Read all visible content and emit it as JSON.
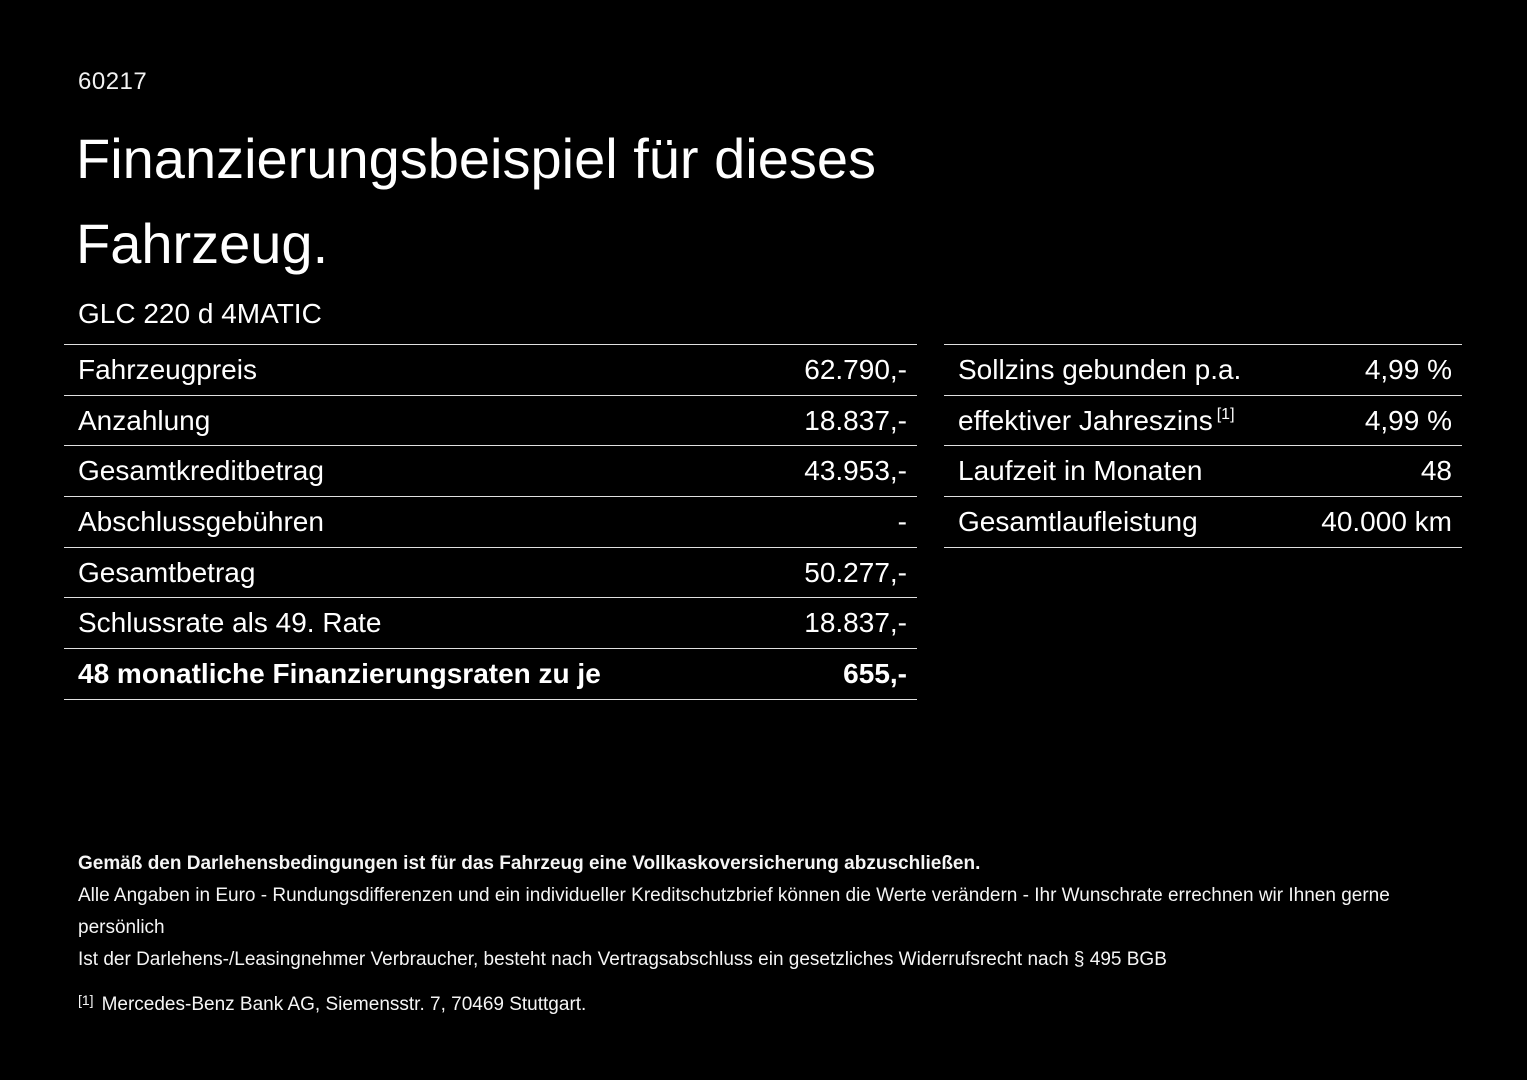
{
  "doc_id": "60217",
  "title": {
    "line1": "Finanzierungsbeispiel für dieses",
    "line2": "Fahrzeug."
  },
  "vehicle_name": "GLC 220 d 4MATIC",
  "left_table": {
    "rows": [
      {
        "label": "Fahrzeugpreis",
        "value": "62.790,-"
      },
      {
        "label": "Anzahlung",
        "value": "18.837,-"
      },
      {
        "label": "Gesamtkreditbetrag",
        "value": "43.953,-"
      },
      {
        "label": "Abschlussgebühren",
        "value": "-"
      },
      {
        "label": "Gesamtbetrag",
        "value": "50.277,-"
      },
      {
        "label": "Schlussrate als 49. Rate",
        "value": "18.837,-"
      },
      {
        "label": "48 monatliche Finanzierungsraten zu je",
        "value": "655,-"
      }
    ]
  },
  "right_table": {
    "rows": [
      {
        "label": "Sollzins gebunden p.a.",
        "value": "4,99 %"
      },
      {
        "label": "effektiver Jahreszins",
        "sup": "[1]",
        "value": "4,99 %"
      },
      {
        "label": "Laufzeit in Monaten",
        "value": "48"
      },
      {
        "label": "Gesamtlaufleistung",
        "value": "40.000 km"
      }
    ]
  },
  "footer": {
    "note_bold": "Gemäß den Darlehensbedingungen ist für das Fahrzeug eine Vollkaskoversicherung abzuschließen.",
    "note_1": "Alle Angaben in Euro - Rundungsdifferenzen und ein individueller Kreditschutzbrief können die Werte verändern - Ihr Wunschrate errechnen wir Ihnen gerne persönlich",
    "note_2": "Ist der Darlehens-/Leasingnehmer Verbraucher, besteht nach Vertragsabschluss ein gesetzliches Widerrufsrecht nach § 495 BGB",
    "ref_marker": "[1]",
    "ref_text": "Mercedes-Benz Bank AG, Siemensstr. 7, 70469 Stuttgart."
  }
}
